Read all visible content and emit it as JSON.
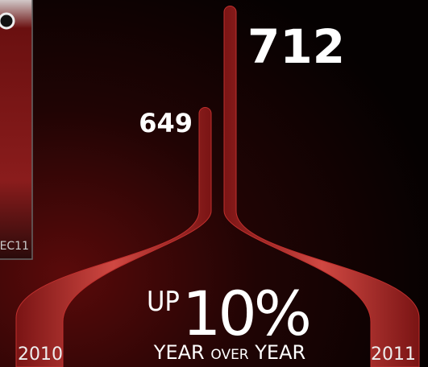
{
  "inset": {
    "label": "EC11"
  },
  "chart_data": {
    "type": "ribbon",
    "categories": [
      "2010",
      "2011"
    ],
    "values": [
      649,
      712
    ],
    "color": "#c0302e",
    "annotation": {
      "prefix": "UP",
      "value": "10%",
      "words": [
        "YEAR",
        "OVER",
        "YEAR"
      ]
    }
  }
}
